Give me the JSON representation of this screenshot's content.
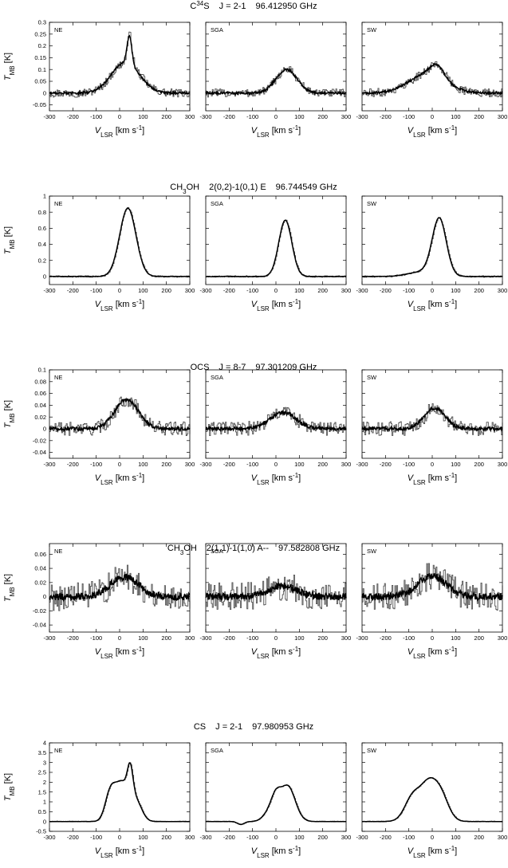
{
  "chart_data": [
    {
      "type": "line",
      "title": "C34S J=2-1 96.412950 GHz",
      "title_parts": {
        "species": "C",
        "species_sup": "34",
        "species_tail": "S",
        "transition": "J = 2-1",
        "frequency": "96.412950 GHz"
      },
      "ylabel": "TMB [K]",
      "ylabel_parts": {
        "main": "T",
        "sub": "MB",
        "unit": " [K]"
      },
      "xlabel_parts": {
        "main": "V",
        "sub": "LSR",
        "unit": " [km s",
        "sup": "-1",
        "close": "]"
      },
      "xlim": [
        -300,
        300
      ],
      "xticks": [
        "-300",
        "-200",
        "-100",
        "0",
        "100",
        "200",
        "300"
      ],
      "ylim": [
        -0.075,
        0.3
      ],
      "yticks": [
        {
          "value": -0.05,
          "label": "-0.05"
        },
        {
          "value": 0,
          "label": "0"
        },
        {
          "value": 0.05,
          "label": "0.05"
        },
        {
          "value": 0.1,
          "label": "0.1"
        },
        {
          "value": 0.15,
          "label": "0.15"
        },
        {
          "value": 0.2,
          "label": "0.2"
        },
        {
          "value": 0.25,
          "label": "0.25"
        },
        {
          "value": 0.3,
          "label": "0.3"
        }
      ],
      "noise": 0.018,
      "panels": [
        {
          "label": "NE",
          "components": [
            {
              "amplitude": 0.13,
              "center": 25,
              "width": 60
            },
            {
              "amplitude": 0.12,
              "center": 42,
              "width": 10
            }
          ]
        },
        {
          "label": "SGA",
          "components": [
            {
              "amplitude": 0.1,
              "center": 45,
              "width": 45
            }
          ]
        },
        {
          "label": "SW",
          "components": [
            {
              "amplitude": 0.08,
              "center": -20,
              "width": 80
            },
            {
              "amplitude": 0.05,
              "center": 20,
              "width": 30
            }
          ]
        }
      ]
    },
    {
      "type": "line",
      "title": "CH3OH 2(0,2)-1(0,1) E 96.744549 GHz",
      "title_parts": {
        "species": "CH",
        "species_sub": "3",
        "species_tail": "OH",
        "transition": "2(0,2)-1(0,1) E",
        "frequency": "96.744549 GHz"
      },
      "ylabel": "TMB [K]",
      "ylabel_parts": {
        "main": "T",
        "sub": "MB",
        "unit": " [K]"
      },
      "xlabel_parts": {
        "main": "V",
        "sub": "LSR",
        "unit": " [km s",
        "sup": "-1",
        "close": "]"
      },
      "xlim": [
        -300,
        300
      ],
      "xticks": [
        "-300",
        "-200",
        "-100",
        "0",
        "100",
        "200",
        "300"
      ],
      "ylim": [
        -0.1,
        1.0
      ],
      "yticks": [
        {
          "value": 0,
          "label": "0"
        },
        {
          "value": 0.2,
          "label": "0.2"
        },
        {
          "value": 0.4,
          "label": "0.4"
        },
        {
          "value": 0.6,
          "label": "0.6"
        },
        {
          "value": 0.8,
          "label": "0.8"
        },
        {
          "value": 1.0,
          "label": "1"
        }
      ],
      "noise": 0.01,
      "panels": [
        {
          "label": "NE",
          "components": [
            {
              "amplitude": 0.85,
              "center": 35,
              "width": 35
            }
          ]
        },
        {
          "label": "SGA",
          "components": [
            {
              "amplitude": 0.7,
              "center": 40,
              "width": 28
            }
          ]
        },
        {
          "label": "SW",
          "components": [
            {
              "amplitude": 0.7,
              "center": 30,
              "width": 30
            },
            {
              "amplitude": 0.06,
              "center": -40,
              "width": 60
            }
          ]
        }
      ]
    },
    {
      "type": "line",
      "title": "OCS J=8-7 97.301209 GHz",
      "title_parts": {
        "species": "OCS",
        "transition": "J = 8-7",
        "frequency": "97.301209 GHz"
      },
      "ylabel": "TMB [K]",
      "ylabel_parts": {
        "main": "T",
        "sub": "MB",
        "unit": " [K]"
      },
      "xlabel_parts": {
        "main": "V",
        "sub": "LSR",
        "unit": " [km s",
        "sup": "-1",
        "close": "]"
      },
      "xlim": [
        -300,
        300
      ],
      "xticks": [
        "-300",
        "-200",
        "-100",
        "0",
        "100",
        "200",
        "300"
      ],
      "ylim": [
        -0.05,
        0.1
      ],
      "yticks": [
        {
          "value": -0.04,
          "label": "-0.04"
        },
        {
          "value": -0.02,
          "label": "-0.02"
        },
        {
          "value": 0,
          "label": "0"
        },
        {
          "value": 0.02,
          "label": "0.02"
        },
        {
          "value": 0.04,
          "label": "0.04"
        },
        {
          "value": 0.06,
          "label": "0.06"
        },
        {
          "value": 0.08,
          "label": "0.08"
        },
        {
          "value": 0.1,
          "label": "0.1"
        }
      ],
      "noise": 0.012,
      "panels": [
        {
          "label": "NE",
          "components": [
            {
              "amplitude": 0.05,
              "center": 30,
              "width": 50
            }
          ]
        },
        {
          "label": "SGA",
          "components": [
            {
              "amplitude": 0.028,
              "center": 30,
              "width": 55
            }
          ]
        },
        {
          "label": "SW",
          "components": [
            {
              "amplitude": 0.035,
              "center": 10,
              "width": 45
            }
          ]
        }
      ]
    },
    {
      "type": "line",
      "title": "CH3OH 2(1,1)-1(1,0) A-- 97.582808 GHz",
      "title_parts": {
        "species": "CH",
        "species_sub": "3",
        "species_tail": "OH",
        "transition": "2(1,1)-1(1,0) A--",
        "frequency": "97.582808 GHz"
      },
      "ylabel": "TMB [K]",
      "ylabel_parts": {
        "main": "T",
        "sub": "MB",
        "unit": " [K]"
      },
      "xlabel_parts": {
        "main": "V",
        "sub": "LSR",
        "unit": " [km s",
        "sup": "-1",
        "close": "]"
      },
      "xlim": [
        -300,
        300
      ],
      "xticks": [
        "-300",
        "-200",
        "-100",
        "0",
        "100",
        "200",
        "300"
      ],
      "ylim": [
        -0.05,
        0.075
      ],
      "yticks": [
        {
          "value": -0.04,
          "label": "-0.04"
        },
        {
          "value": -0.02,
          "label": "-0.02"
        },
        {
          "value": 0,
          "label": "0"
        },
        {
          "value": 0.02,
          "label": "0.02"
        },
        {
          "value": 0.04,
          "label": "0.04"
        },
        {
          "value": 0.06,
          "label": "0.06"
        }
      ],
      "noise": 0.02,
      "panels": [
        {
          "label": "NE",
          "components": [
            {
              "amplitude": 0.028,
              "center": 20,
              "width": 60
            }
          ]
        },
        {
          "label": "SGA",
          "components": [
            {
              "amplitude": 0.015,
              "center": 30,
              "width": 60
            }
          ]
        },
        {
          "label": "SW",
          "components": [
            {
              "amplitude": 0.03,
              "center": 0,
              "width": 60
            }
          ]
        }
      ]
    },
    {
      "type": "line",
      "title": "CS J=2-1 97.980953 GHz",
      "title_parts": {
        "species": "CS",
        "transition": "J = 2-1",
        "frequency": "97.980953 GHz"
      },
      "ylabel": "TMB [K]",
      "ylabel_parts": {
        "main": "T",
        "sub": "MB",
        "unit": " [K]"
      },
      "xlabel_parts": {
        "main": "V",
        "sub": "LSR",
        "unit": " [km s",
        "sup": "-1",
        "close": "]"
      },
      "xlim": [
        -300,
        300
      ],
      "xticks": [
        "-300",
        "-200",
        "-100",
        "0",
        "100",
        "200",
        "300"
      ],
      "ylim": [
        -0.5,
        4.0
      ],
      "yticks": [
        {
          "value": -0.5,
          "label": "-0.5"
        },
        {
          "value": 0,
          "label": "0"
        },
        {
          "value": 0.5,
          "label": "0.5"
        },
        {
          "value": 1.0,
          "label": "1"
        },
        {
          "value": 1.5,
          "label": "1.5"
        },
        {
          "value": 2.0,
          "label": "2"
        },
        {
          "value": 2.5,
          "label": "2.5"
        },
        {
          "value": 3.0,
          "label": "3"
        },
        {
          "value": 3.5,
          "label": "3.5"
        },
        {
          "value": 4.0,
          "label": "4"
        }
      ],
      "noise": 0.02,
      "panels": [
        {
          "label": "NE",
          "components": [
            {
              "amplitude": 1.4,
              "center": -40,
              "width": 22
            },
            {
              "amplitude": 1.9,
              "center": 10,
              "width": 28
            },
            {
              "amplitude": 1.5,
              "center": 45,
              "width": 12
            },
            {
              "amplitude": 1.0,
              "center": 70,
              "width": 25
            }
          ]
        },
        {
          "label": "SGA",
          "components": [
            {
              "amplitude": 0.45,
              "center": -30,
              "width": 25
            },
            {
              "amplitude": 0.9,
              "center": 0,
              "width": 20
            },
            {
              "amplitude": 1.8,
              "center": 50,
              "width": 32
            },
            {
              "amplitude": -0.15,
              "center": -150,
              "width": 15
            }
          ]
        },
        {
          "label": "SW",
          "components": [
            {
              "amplitude": 1.35,
              "center": -80,
              "width": 35
            },
            {
              "amplitude": 1.3,
              "center": -20,
              "width": 30
            },
            {
              "amplitude": 1.55,
              "center": 30,
              "width": 35
            }
          ]
        }
      ]
    }
  ]
}
